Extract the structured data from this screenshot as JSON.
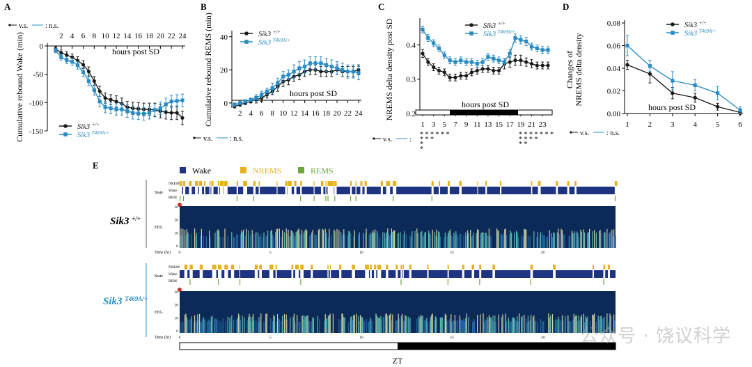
{
  "colors": {
    "wt": "#1a1a1a",
    "mut": "#2a8cc4",
    "wake": "#1f3480",
    "nrem": "#e8b21e",
    "rem": "#6ea53a",
    "eeg_bg": "#0c2a58"
  },
  "chart_data": [
    {
      "panel": "A",
      "type": "line",
      "ylabel": "Cumulative rebound Wake (min)",
      "xlabel": "hours post SD",
      "xticks": [
        "2",
        "4",
        "6",
        "8",
        "10",
        "12",
        "14",
        "16",
        "18",
        "20",
        "22",
        "24"
      ],
      "yticks": [
        "0",
        "-50",
        "-100",
        "-150"
      ],
      "ylim": [
        -150,
        0
      ],
      "xlim": [
        0,
        24
      ],
      "x": [
        1,
        2,
        3,
        4,
        5,
        6,
        7,
        8,
        9,
        10,
        11,
        12,
        13,
        14,
        15,
        16,
        17,
        18,
        19,
        20,
        21,
        22,
        23,
        24
      ],
      "series": [
        {
          "name": "Sik3 +/+",
          "values": [
            -5,
            -12,
            -16,
            -20,
            -26,
            -33,
            -45,
            -62,
            -80,
            -92,
            -95,
            -98,
            -102,
            -108,
            -110,
            -111,
            -112,
            -112,
            -113,
            -115,
            -117,
            -118,
            -118,
            -127
          ],
          "err": [
            4,
            5,
            6,
            6,
            7,
            7,
            8,
            8,
            9,
            9,
            9,
            10,
            10,
            10,
            11,
            11,
            11,
            11,
            12,
            12,
            12,
            12,
            12,
            12
          ]
        },
        {
          "name": "Sik3 T469A/+",
          "values": [
            -8,
            -20,
            -25,
            -28,
            -34,
            -46,
            -62,
            -78,
            -98,
            -108,
            -110,
            -112,
            -112,
            -115,
            -118,
            -119,
            -120,
            -118,
            -113,
            -110,
            -103,
            -98,
            -97,
            -96
          ],
          "err": [
            4,
            5,
            6,
            6,
            7,
            8,
            8,
            9,
            9,
            10,
            10,
            10,
            10,
            11,
            11,
            11,
            11,
            11,
            11,
            11,
            11,
            11,
            11,
            11
          ]
        }
      ],
      "stat_legend": {
        "sig": "v.s.",
        "ns": ": n.s."
      }
    },
    {
      "panel": "B",
      "type": "line",
      "ylabel": "Cumulative rebound REMS (min)",
      "xlabel": "hours post SD",
      "xticks": [
        "2",
        "4",
        "6",
        "8",
        "10",
        "12",
        "14",
        "16",
        "18",
        "20",
        "22",
        "24"
      ],
      "yticks": [
        "0",
        "20",
        "40"
      ],
      "ylim": [
        -3,
        42
      ],
      "xlim": [
        1,
        24
      ],
      "x": [
        1,
        2,
        3,
        4,
        5,
        6,
        7,
        8,
        9,
        10,
        11,
        12,
        13,
        14,
        15,
        16,
        17,
        18,
        19,
        20,
        21,
        22,
        23,
        24
      ],
      "series": [
        {
          "name": "Sik3 +/+",
          "values": [
            -2,
            -1,
            0,
            1,
            2,
            3,
            5,
            7,
            10,
            13,
            14,
            16,
            17,
            19,
            20,
            20,
            19,
            19,
            19,
            20,
            19,
            19,
            19,
            20
          ],
          "err": [
            1,
            1,
            1,
            1,
            2,
            2,
            2,
            2,
            3,
            3,
            3,
            3,
            3,
            3,
            3,
            3,
            3,
            3,
            3,
            3,
            3,
            3,
            3,
            3
          ]
        },
        {
          "name": "Sik3 T469A/+",
          "values": [
            -1,
            0,
            1,
            2,
            3,
            5,
            7,
            9,
            12,
            16,
            17,
            19,
            21,
            22,
            24,
            24,
            24,
            23,
            22,
            21,
            20,
            19,
            19,
            18
          ],
          "err": [
            1,
            1,
            1,
            1,
            2,
            2,
            2,
            3,
            3,
            3,
            3,
            4,
            4,
            4,
            4,
            4,
            4,
            4,
            4,
            4,
            4,
            4,
            4,
            4
          ]
        }
      ],
      "stat_legend": {
        "sig": "v.s.",
        "ns": ": n.s."
      }
    },
    {
      "panel": "C",
      "type": "line",
      "ylabel": "NREMS delta density post SD",
      "xlabel": "hours post SD",
      "xticks": [
        "1",
        "3",
        "5",
        "7",
        "9",
        "11",
        "13",
        "15",
        "17",
        "19",
        "21",
        "23"
      ],
      "yticks": [
        "0.2",
        "0.3",
        "0.4"
      ],
      "ylim": [
        0.2,
        0.47
      ],
      "xlim": [
        1,
        24
      ],
      "x": [
        1,
        2,
        3,
        4,
        5,
        6,
        7,
        8,
        9,
        10,
        11,
        12,
        13,
        14,
        15,
        16,
        17,
        18,
        19,
        20,
        21,
        22,
        23,
        24
      ],
      "series": [
        {
          "name": "Sik3 +/+",
          "values": [
            0.375,
            0.35,
            0.335,
            0.325,
            0.32,
            0.305,
            0.305,
            0.31,
            0.31,
            0.32,
            0.325,
            0.33,
            0.33,
            0.325,
            0.325,
            0.345,
            0.35,
            0.355,
            0.355,
            0.35,
            0.345,
            0.34,
            0.34,
            0.34
          ],
          "err": [
            0.012,
            0.01,
            0.01,
            0.01,
            0.01,
            0.01,
            0.01,
            0.01,
            0.01,
            0.01,
            0.01,
            0.01,
            0.01,
            0.01,
            0.01,
            0.015,
            0.015,
            0.015,
            0.015,
            0.012,
            0.012,
            0.01,
            0.01,
            0.01
          ]
        },
        {
          "name": "Sik3 T469A/+",
          "values": [
            0.445,
            0.42,
            0.405,
            0.39,
            0.37,
            0.355,
            0.35,
            0.355,
            0.35,
            0.35,
            0.345,
            0.35,
            0.365,
            0.36,
            0.355,
            0.35,
            0.375,
            0.42,
            0.415,
            0.41,
            0.395,
            0.39,
            0.385,
            0.385
          ],
          "err": [
            0.01,
            0.01,
            0.01,
            0.01,
            0.01,
            0.01,
            0.01,
            0.01,
            0.01,
            0.01,
            0.01,
            0.01,
            0.01,
            0.01,
            0.01,
            0.01,
            0.012,
            0.012,
            0.012,
            0.012,
            0.01,
            0.01,
            0.01,
            0.01
          ]
        }
      ],
      "stars_left": [
        "* * * * * *",
        "* * *",
        "*",
        "*"
      ],
      "stars_right": [
        "* * * * *  * *",
        "* * * *",
        "* *"
      ],
      "stat_legend": {
        "sig": "v.s.",
        "ns": ":"
      }
    },
    {
      "panel": "D",
      "type": "line",
      "ylabel": "Changes of NREMS delta density",
      "xlabel": "hours post SD",
      "xticks": [
        "1",
        "2",
        "3",
        "4",
        "5",
        "6"
      ],
      "yticks": [
        "0.00",
        "0.02",
        "0.04",
        "0.06",
        "0.08"
      ],
      "ylim": [
        0,
        0.08
      ],
      "xlim": [
        1,
        6
      ],
      "x": [
        1,
        2,
        3,
        4,
        5,
        6
      ],
      "series": [
        {
          "name": "Sik3 +/+",
          "values": [
            0.043,
            0.035,
            0.018,
            0.014,
            0.006,
            0.001
          ],
          "err": [
            0.004,
            0.008,
            0.005,
            0.004,
            0.003,
            0.002
          ]
        },
        {
          "name": "Sik3 T469A/+",
          "values": [
            0.06,
            0.042,
            0.029,
            0.025,
            0.018,
            0.003
          ],
          "err": [
            0.009,
            0.005,
            0.008,
            0.005,
            0.006,
            0.003
          ]
        }
      ],
      "stat_legend": {
        "sig": "v.s.",
        "ns": ": n.s."
      }
    }
  ],
  "panel_e": {
    "label": "E",
    "legend": [
      "Wake",
      "NREMS",
      "REMS"
    ],
    "rows": [
      {
        "genotype": "Sik3",
        "sup": "+/+"
      },
      {
        "genotype": "Sik3",
        "sup": "T469A/+"
      }
    ],
    "state_labels": [
      "NREM",
      "Wake",
      "REM"
    ],
    "state_axis": "State",
    "eeg_axis": "EEG",
    "eeg_ticks": [
      "30",
      "20",
      "10",
      "0"
    ],
    "time_axis": "Time (hr)",
    "time_ticks": [
      "0",
      "5",
      "10",
      "15",
      "20"
    ],
    "zt_label": "ZT"
  },
  "panel_labels": [
    "A",
    "B",
    "C",
    "D"
  ],
  "watermark": "公众号 · 饶议科学"
}
